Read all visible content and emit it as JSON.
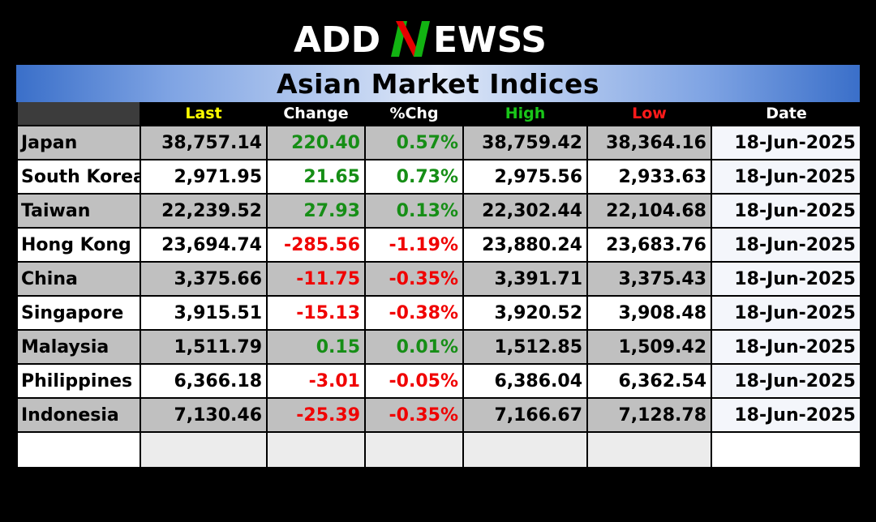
{
  "brand": {
    "left": "ADD",
    "right": "EWSS",
    "colors": {
      "text": "#ffffff",
      "n_green": "#12b312",
      "n_red": "#e60000"
    }
  },
  "title": "Asian Market Indices",
  "columns": {
    "last": "Last",
    "change": "Change",
    "pct": "%Chg",
    "high": "High",
    "low": "Low",
    "date": "Date"
  },
  "header_colors": {
    "last": "#ffff00",
    "change": "#ffffff",
    "pct": "#ffffff",
    "high": "#19c619",
    "low": "#ff1a1a",
    "date": "#ffffff"
  },
  "rows": [
    {
      "name": "Japan",
      "last": "38,757.14",
      "change": "220.40",
      "pct": "0.57%",
      "high": "38,759.42",
      "low": "38,364.16",
      "date": "18-Jun-2025",
      "dir": "up"
    },
    {
      "name": "South Korea",
      "last": "2,971.95",
      "change": "21.65",
      "pct": "0.73%",
      "high": "2,975.56",
      "low": "2,933.63",
      "date": "18-Jun-2025",
      "dir": "up"
    },
    {
      "name": "Taiwan",
      "last": "22,239.52",
      "change": "27.93",
      "pct": "0.13%",
      "high": "22,302.44",
      "low": "22,104.68",
      "date": "18-Jun-2025",
      "dir": "up"
    },
    {
      "name": "Hong Kong",
      "last": "23,694.74",
      "change": "-285.56",
      "pct": "-1.19%",
      "high": "23,880.24",
      "low": "23,683.76",
      "date": "18-Jun-2025",
      "dir": "down"
    },
    {
      "name": "China",
      "last": "3,375.66",
      "change": "-11.75",
      "pct": "-0.35%",
      "high": "3,391.71",
      "low": "3,375.43",
      "date": "18-Jun-2025",
      "dir": "down"
    },
    {
      "name": "Singapore",
      "last": "3,915.51",
      "change": "-15.13",
      "pct": "-0.38%",
      "high": "3,920.52",
      "low": "3,908.48",
      "date": "18-Jun-2025",
      "dir": "down"
    },
    {
      "name": "Malaysia",
      "last": "1,511.79",
      "change": "0.15",
      "pct": "0.01%",
      "high": "1,512.85",
      "low": "1,509.42",
      "date": "18-Jun-2025",
      "dir": "up"
    },
    {
      "name": "Philippines",
      "last": "6,366.18",
      "change": "-3.01",
      "pct": "-0.05%",
      "high": "6,386.04",
      "low": "6,362.54",
      "date": "18-Jun-2025",
      "dir": "down"
    },
    {
      "name": "Indonesia",
      "last": "7,130.46",
      "change": "-25.39",
      "pct": "-0.35%",
      "high": "7,166.67",
      "low": "7,128.78",
      "date": "18-Jun-2025",
      "dir": "down"
    }
  ]
}
